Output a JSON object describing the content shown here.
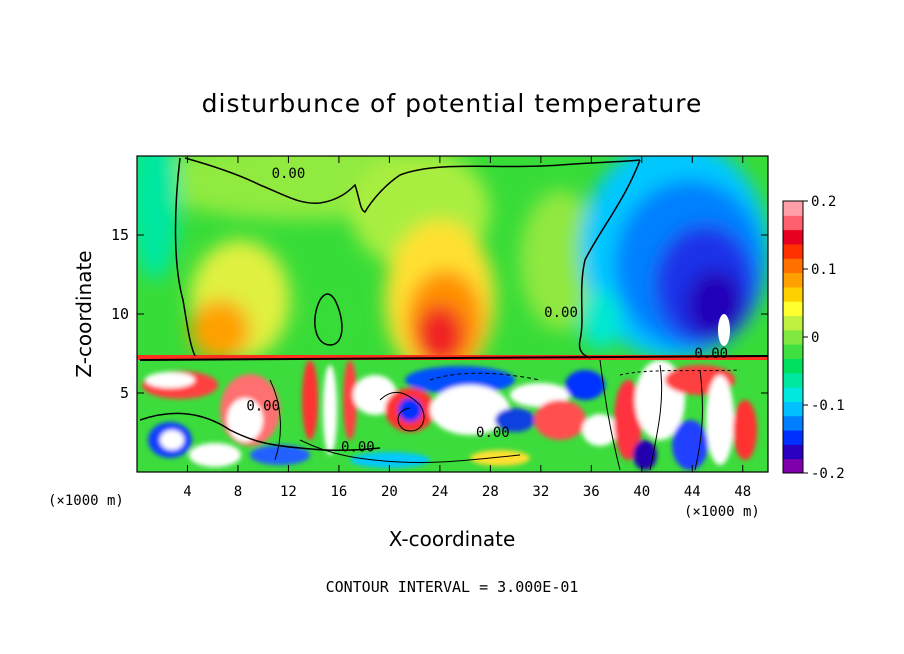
{
  "chart_data": {
    "type": "heatmap",
    "title": "disturbunce of potential temperature",
    "xlabel": "X-coordinate",
    "ylabel": "Z-coordinate",
    "x_unit": "(×1000 m)",
    "z_unit": "(×1000 m)",
    "xlim": [
      0,
      50
    ],
    "ylim": [
      0,
      20
    ],
    "x_ticks": [
      4,
      8,
      12,
      16,
      20,
      24,
      28,
      32,
      36,
      40,
      44,
      48
    ],
    "y_ticks": [
      5,
      10,
      15
    ],
    "colorbar": {
      "range": [
        -0.2,
        0.2
      ],
      "tick_values": [
        0.2,
        0.1,
        0,
        -0.1,
        -0.2
      ],
      "tick_labels": [
        "0.2",
        "0.1",
        "0",
        "-0.1",
        "-0.2"
      ],
      "colors": [
        "#7f00aa",
        "#2a00c0",
        "#0030ff",
        "#0080ff",
        "#00c0ff",
        "#00e8e0",
        "#00e8a0",
        "#00e060",
        "#40e040",
        "#80e840",
        "#c0f040",
        "#ffff30",
        "#ffd000",
        "#ffa000",
        "#ff7000",
        "#ff3000",
        "#e80020",
        "#ff6070",
        "#ffa0a8"
      ]
    },
    "contour_labels": [
      {
        "x": 12,
        "z": 18.6,
        "text": "0.00"
      },
      {
        "x": 33.6,
        "z": 9.8,
        "text": "0.00"
      },
      {
        "x": 45.5,
        "z": 7.2,
        "text": "0.00"
      },
      {
        "x": 10,
        "z": 3.9,
        "text": "0.00"
      },
      {
        "x": 28.2,
        "z": 2.2,
        "text": "0.00"
      },
      {
        "x": 17.5,
        "z": 1.3,
        "text": "0.00"
      }
    ],
    "footer": "CONTOUR INTERVAL = 3.000E-01"
  }
}
